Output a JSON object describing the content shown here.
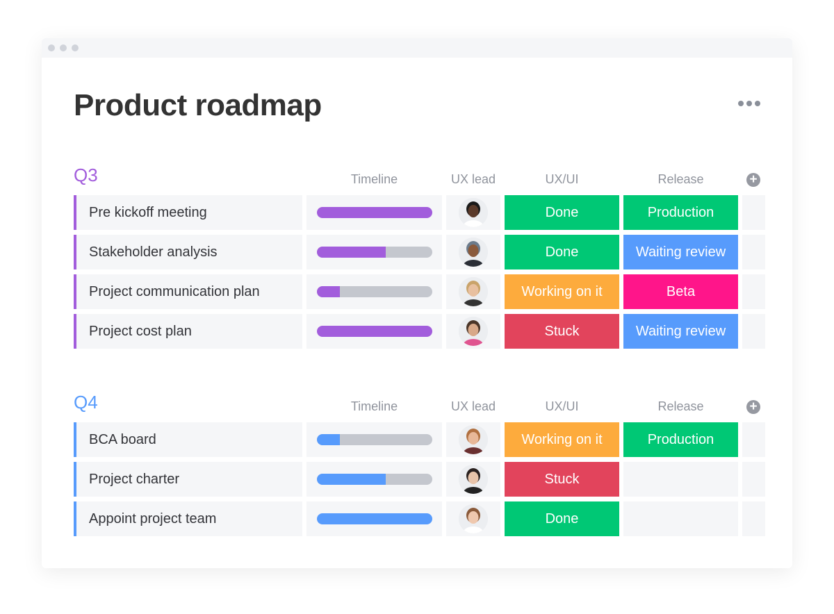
{
  "window": {
    "title": "Product roadmap"
  },
  "colors": {
    "done": "#00c875",
    "working": "#fdab3d",
    "stuck": "#e2445c",
    "production": "#00c875",
    "waiting": "#579bfc",
    "beta": "#ff158a",
    "q3": "#a25ddc",
    "q4": "#579bfc"
  },
  "columns": [
    "Timeline",
    "UX lead",
    "UX/UI",
    "Release"
  ],
  "groups": [
    {
      "label": "Q3",
      "color": "#a25ddc",
      "rows": [
        {
          "name": "Pre kickoff meeting",
          "timeline_progress": 100,
          "lead_avatar": "woman-glasses",
          "ux_ui": "Done",
          "ux_ui_color": "#00c875",
          "release": "Production",
          "release_color": "#00c875"
        },
        {
          "name": "Stakeholder analysis",
          "timeline_progress": 60,
          "lead_avatar": "man-cap",
          "ux_ui": "Done",
          "ux_ui_color": "#00c875",
          "release": "Waiting review",
          "release_color": "#579bfc"
        },
        {
          "name": "Project communication plan",
          "timeline_progress": 20,
          "lead_avatar": "woman-blonde",
          "ux_ui": "Working on it",
          "ux_ui_color": "#fdab3d",
          "release": "Beta",
          "release_color": "#ff158a"
        },
        {
          "name": "Project cost plan",
          "timeline_progress": 100,
          "lead_avatar": "man-beard",
          "ux_ui": "Stuck",
          "ux_ui_color": "#e2445c",
          "release": "Waiting review",
          "release_color": "#579bfc"
        }
      ]
    },
    {
      "label": "Q4",
      "color": "#579bfc",
      "rows": [
        {
          "name": "BCA board",
          "timeline_progress": 20,
          "lead_avatar": "man-ginger",
          "ux_ui": "Working on it",
          "ux_ui_color": "#fdab3d",
          "release": "Production",
          "release_color": "#00c875"
        },
        {
          "name": "Project charter",
          "timeline_progress": 60,
          "lead_avatar": "woman-dark-hair",
          "ux_ui": "Stuck",
          "ux_ui_color": "#e2445c",
          "release": "",
          "release_color": ""
        },
        {
          "name": "Appoint project team",
          "timeline_progress": 100,
          "lead_avatar": "woman-brown-hair",
          "ux_ui": "Done",
          "ux_ui_color": "#00c875",
          "release": "",
          "release_color": ""
        }
      ]
    }
  ]
}
